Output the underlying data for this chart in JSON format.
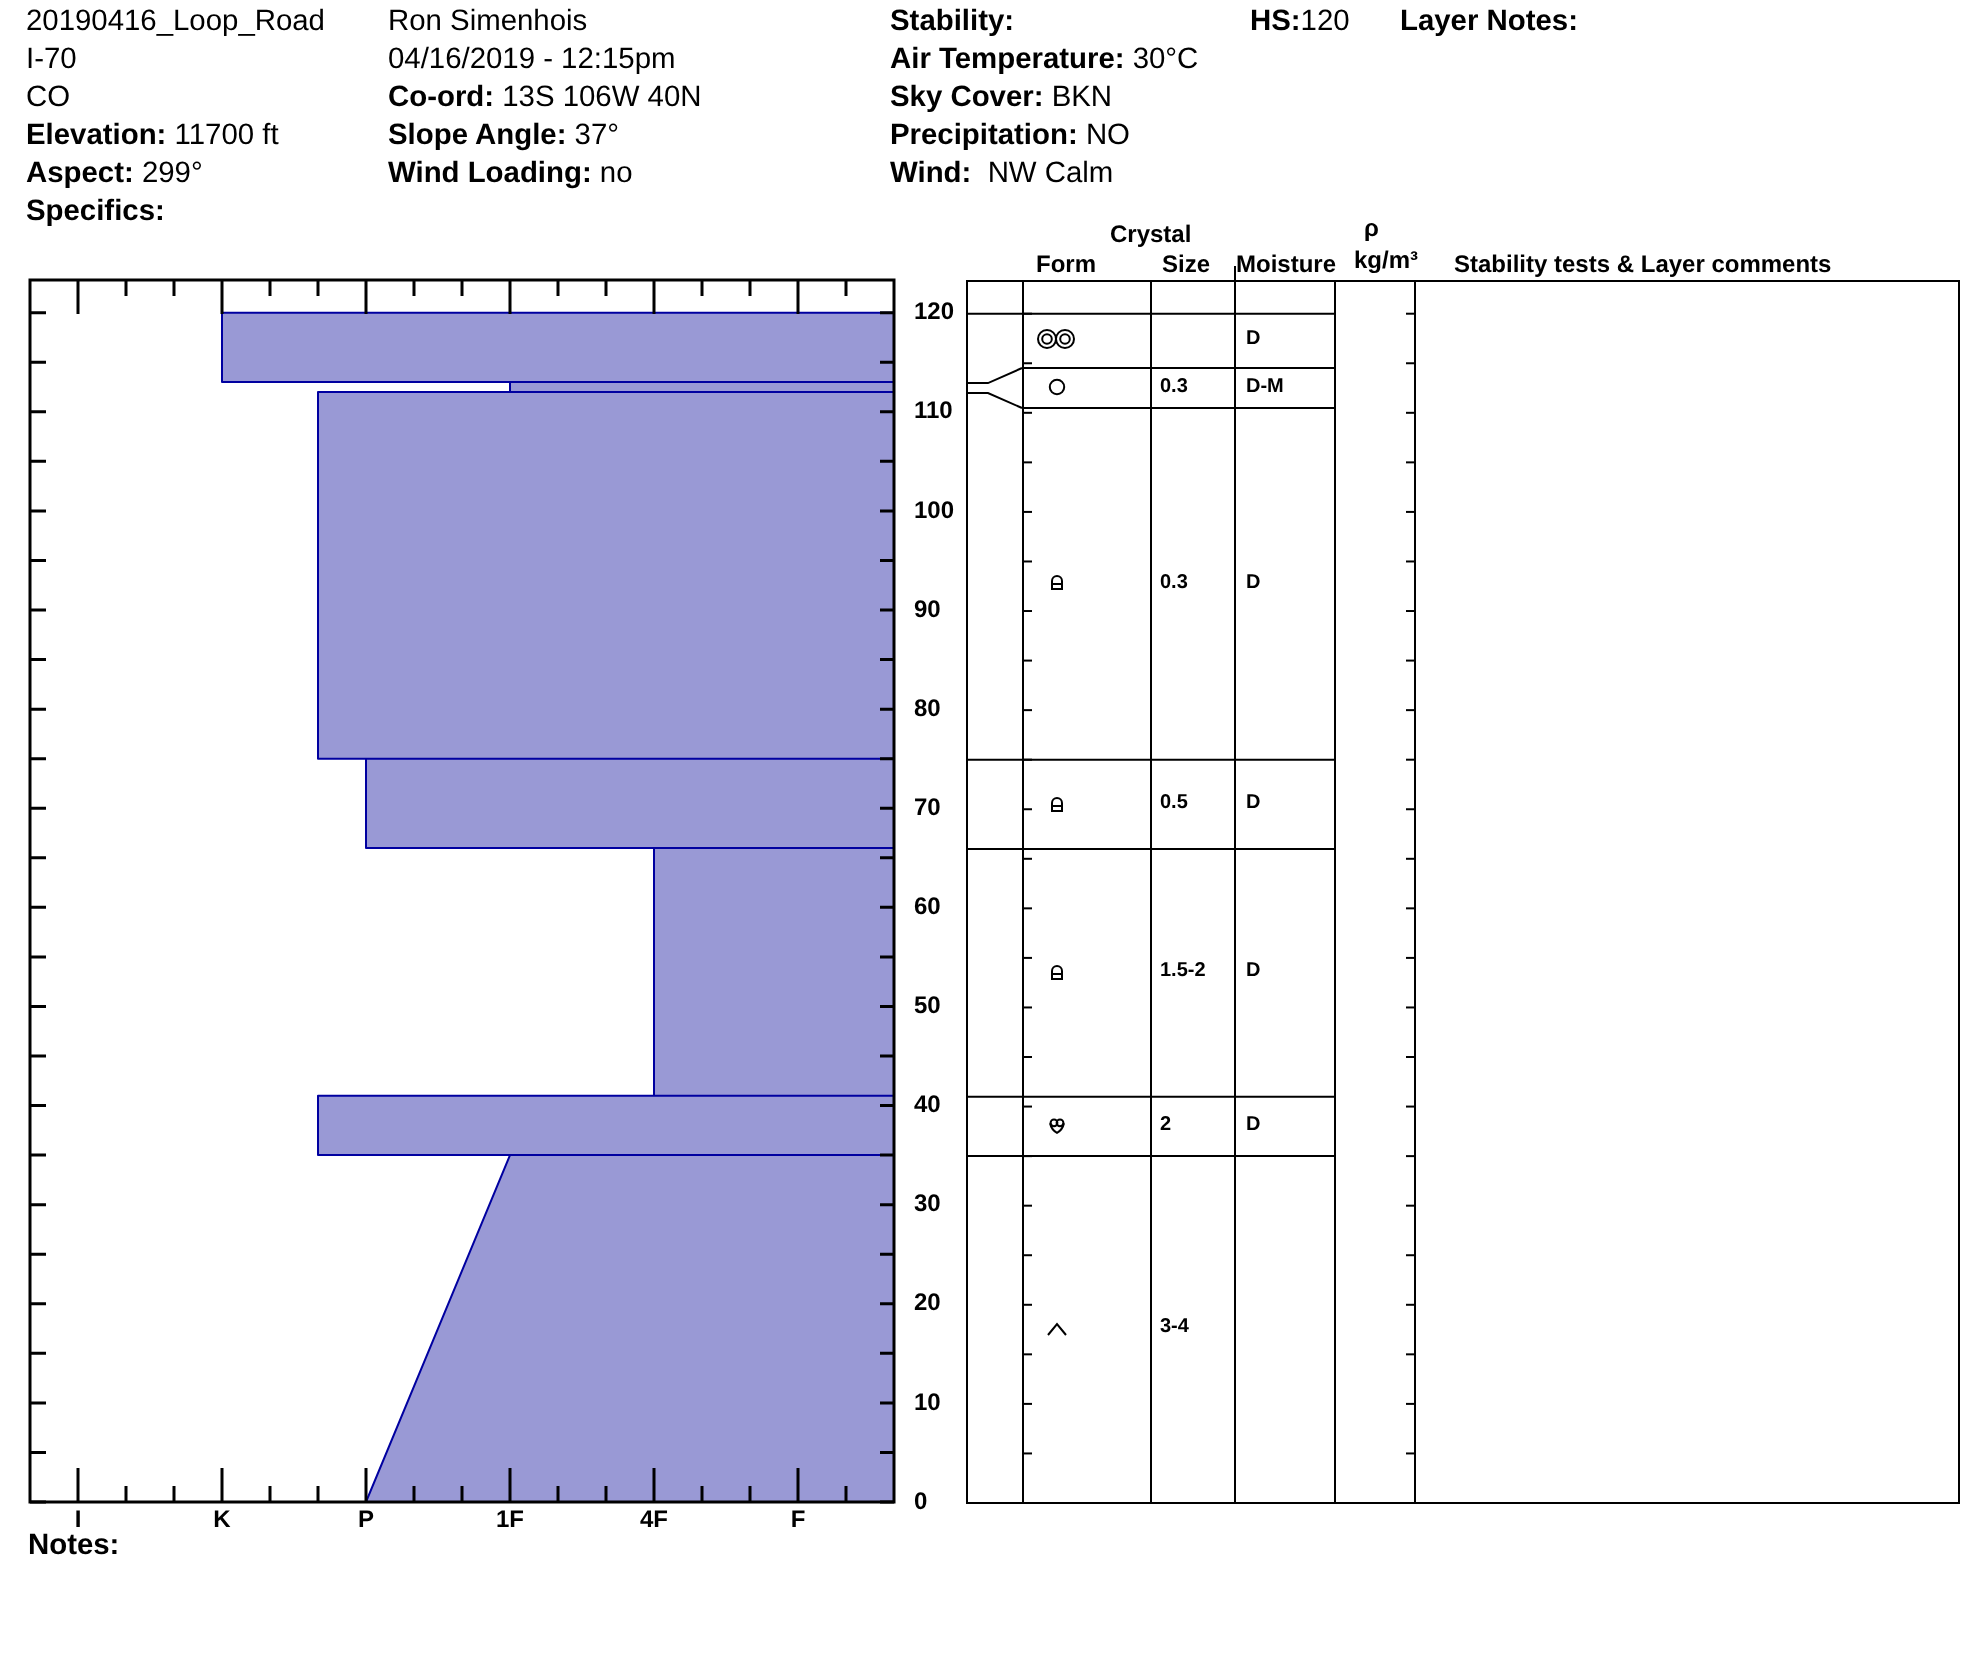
{
  "chart_data": {
    "type": "area",
    "orientation": "horizontal",
    "series": [
      {
        "color": "#9999d5",
        "x": [
          0,
          0,
          35,
          35,
          35,
          41,
          41,
          41,
          66,
          66,
          66,
          75,
          75,
          75,
          112,
          112,
          112,
          113,
          113,
          113,
          120,
          120
        ],
        "values": [
          9,
          -2,
          1,
          9,
          -3,
          -3,
          9,
          4,
          4,
          9,
          -2,
          -2,
          9,
          -3,
          -3,
          9,
          1,
          1,
          9,
          -5,
          -5,
          9
        ]
      }
    ],
    "xlim": [
      -9,
      9
    ],
    "xticks": [
      {
        "value": -8,
        "label": "I"
      },
      {
        "value": -7,
        "label": null
      },
      {
        "value": -6,
        "label": null
      },
      {
        "value": -5,
        "label": "K"
      },
      {
        "value": -4,
        "label": null
      },
      {
        "value": -3,
        "label": null
      },
      {
        "value": -2,
        "label": "P"
      },
      {
        "value": -1,
        "label": null
      },
      {
        "value": 0,
        "label": null
      },
      {
        "value": 1,
        "label": "1F"
      },
      {
        "value": 2,
        "label": null
      },
      {
        "value": 3,
        "label": null
      },
      {
        "value": 4,
        "label": "4F"
      },
      {
        "value": 5,
        "label": null
      },
      {
        "value": 6,
        "label": null
      },
      {
        "value": 7,
        "label": "F"
      },
      {
        "value": 8,
        "label": null
      }
    ],
    "ylim": [
      0,
      123.3
    ],
    "yticks": [
      0,
      {
        "value": 5,
        "label": null
      },
      10,
      {
        "value": 15,
        "label": null
      },
      20,
      {
        "value": 25,
        "label": null
      },
      30,
      {
        "value": 35,
        "label": null
      },
      40,
      {
        "value": 45,
        "label": null
      },
      50,
      {
        "value": 55,
        "label": null
      },
      60,
      {
        "value": 65,
        "label": null
      },
      70,
      {
        "value": 75,
        "label": null
      },
      80,
      {
        "value": 85,
        "label": null
      },
      90,
      {
        "value": 95,
        "label": null
      },
      100,
      {
        "value": 105,
        "label": null
      },
      110,
      {
        "value": 115,
        "label": null
      },
      120
    ],
    "annotations": [
      "20190416_Loop_Road",
      "I-70",
      "CO",
      "Elevation: 11700 ft",
      "Aspect: 299°",
      "Specifics:",
      "Ron Simenhois",
      "04/16/2019 - 12:15pm",
      "Co-ord: 13S 106W 40N",
      "Slope Angle: 37°",
      "Wind Loading: no",
      "Stability:",
      "Air Temperature: 30°C",
      "Sky Cover: BKN",
      "Precipitation: NO",
      "Wind:  NW Calm",
      "HS:120",
      "Layer Notes:",
      "Crystal",
      "Form",
      "Size",
      "Moisture",
      "ρ",
      "kg/m³",
      "Stability tests & Layer comments",
      "D",
      "0.3",
      "D-M",
      "0.3",
      "D",
      "0.5",
      "D",
      "1.5-2",
      "D",
      "2",
      "D",
      "3-4",
      "Notes:"
    ]
  }
}
